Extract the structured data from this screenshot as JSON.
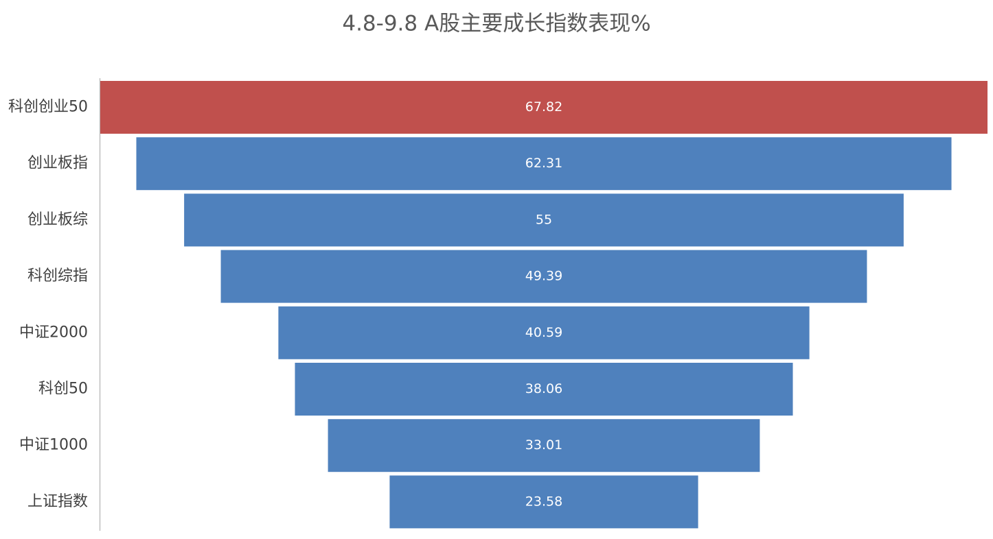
{
  "chart_data": {
    "type": "funnel",
    "title": "4.8-9.8  A股主要成长指数表现%",
    "categories": [
      "科创创业50",
      "创业板指",
      "创业板综",
      "科创综指",
      "中证2000",
      "科创50",
      "中证1000",
      "上证指数"
    ],
    "values": [
      67.82,
      62.31,
      55,
      49.39,
      40.59,
      38.06,
      33.01,
      23.58
    ],
    "colors": [
      "#c0504d",
      "#4f81bd",
      "#4f81bd",
      "#4f81bd",
      "#4f81bd",
      "#4f81bd",
      "#4f81bd",
      "#4f81bd"
    ]
  }
}
